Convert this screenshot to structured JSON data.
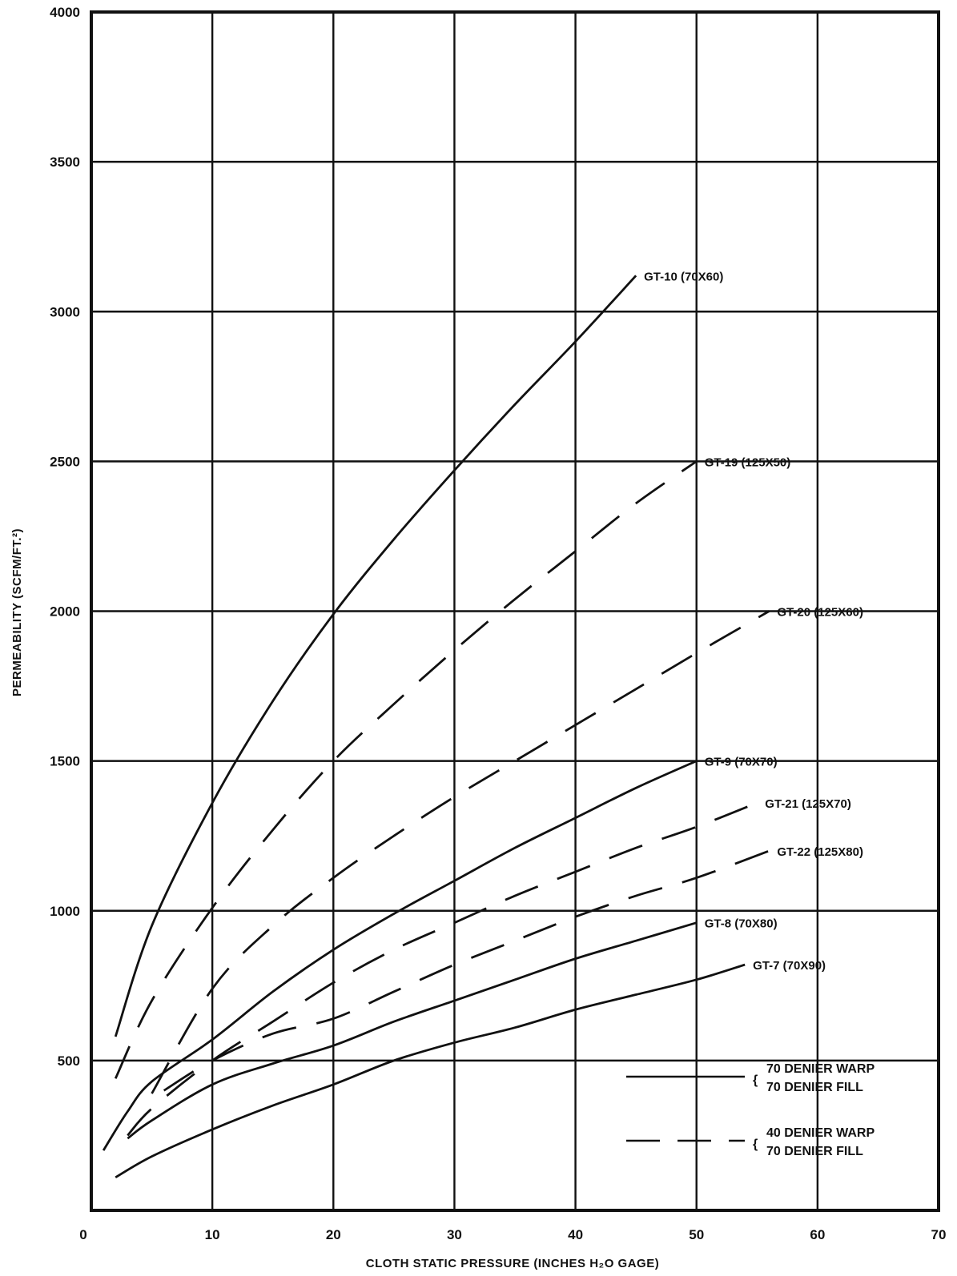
{
  "chart_data": {
    "type": "line",
    "title": "",
    "xlabel": "CLOTH STATIC PRESSURE  (INCHES H₂O GAGE)",
    "ylabel": "PERMEABILITY  (SCFM/FT.²)",
    "xlim": [
      0,
      70
    ],
    "ylim": [
      0,
      4000
    ],
    "x_ticks": [
      0,
      10,
      20,
      30,
      40,
      50,
      60,
      70
    ],
    "y_ticks": [
      500,
      1000,
      1500,
      2000,
      2500,
      3000,
      3500,
      4000
    ],
    "grid": true,
    "series": [
      {
        "name": "GT-10 (70X60)",
        "style": "solid",
        "x": [
          2,
          5,
          10,
          15,
          20,
          25,
          30,
          35,
          40,
          45
        ],
        "y": [
          580,
          950,
          1360,
          1700,
          1990,
          2240,
          2470,
          2690,
          2900,
          3120
        ]
      },
      {
        "name": "GT-19 (125X50)",
        "style": "dashed",
        "x": [
          2,
          5,
          10,
          15,
          20,
          25,
          30,
          35,
          40,
          45,
          50
        ],
        "y": [
          440,
          700,
          1010,
          1270,
          1500,
          1690,
          1870,
          2040,
          2200,
          2360,
          2500
        ]
      },
      {
        "name": "GT-20 (125X60)",
        "style": "dashed",
        "x": [
          5,
          10,
          15,
          20,
          25,
          30,
          35,
          40,
          45,
          50,
          56
        ],
        "y": [
          390,
          740,
          950,
          1110,
          1250,
          1380,
          1500,
          1620,
          1740,
          1860,
          2000
        ]
      },
      {
        "name": "GT-9 (70X70)",
        "style": "solid",
        "x": [
          1,
          3,
          5,
          10,
          15,
          20,
          25,
          30,
          35,
          40,
          45,
          50
        ],
        "y": [
          200,
          330,
          430,
          570,
          730,
          870,
          990,
          1100,
          1210,
          1310,
          1410,
          1500
        ]
      },
      {
        "name": "GT-21 (125X70)",
        "style": "dashed",
        "x": [
          3,
          5,
          10,
          15,
          20,
          25,
          30,
          35,
          40,
          45,
          50,
          55
        ],
        "y": [
          250,
          340,
          500,
          630,
          760,
          870,
          960,
          1050,
          1130,
          1210,
          1280,
          1360
        ]
      },
      {
        "name": "GT-22 (125X80)",
        "style": "dashed",
        "x": [
          6,
          10,
          15,
          20,
          25,
          30,
          35,
          40,
          45,
          50,
          56
        ],
        "y": [
          400,
          500,
          590,
          640,
          730,
          820,
          900,
          980,
          1050,
          1110,
          1200
        ]
      },
      {
        "name": "GT-8 (70X80)",
        "style": "solid",
        "x": [
          3,
          5,
          10,
          15,
          20,
          25,
          30,
          35,
          40,
          45,
          50
        ],
        "y": [
          240,
          300,
          420,
          490,
          550,
          630,
          700,
          770,
          840,
          900,
          960
        ]
      },
      {
        "name": "GT-7 (70X90)",
        "style": "solid",
        "x": [
          2,
          5,
          10,
          15,
          20,
          25,
          30,
          35,
          40,
          45,
          50,
          54
        ],
        "y": [
          110,
          180,
          270,
          350,
          420,
          500,
          560,
          610,
          670,
          720,
          770,
          820
        ]
      }
    ],
    "legend": {
      "placement": "bottom-right",
      "entries": [
        {
          "style": "solid",
          "lines": [
            "70 DENIER WARP",
            "70 DENIER FILL"
          ]
        },
        {
          "style": "dashed",
          "lines": [
            "40 DENIER WARP",
            "70 DENIER FILL"
          ]
        }
      ]
    }
  }
}
